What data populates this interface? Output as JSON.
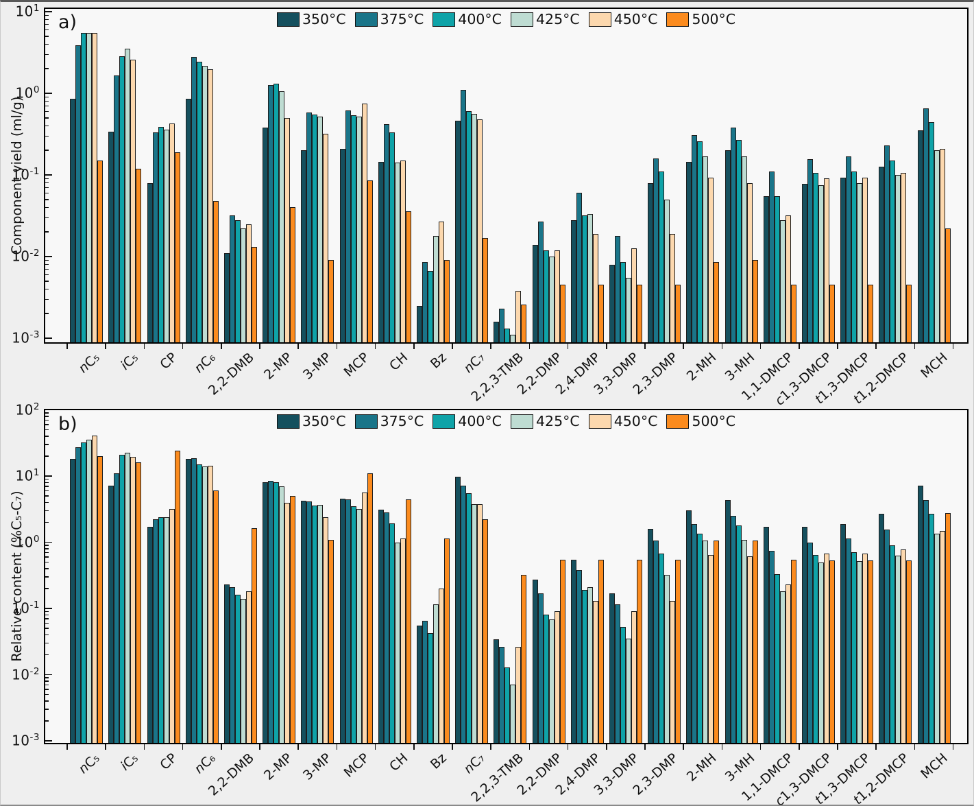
{
  "figure": {
    "panel_labels": [
      "a)",
      "b)"
    ]
  },
  "chart_data": [
    {
      "panel": "a",
      "type": "bar",
      "yscale": "log",
      "ylabel": "Component yield (ml/g)",
      "ylim": [
        0.001,
        10
      ],
      "y_tick_labels": [
        "10^1",
        "10^0",
        "10^-1",
        "10^-2",
        "10^-3"
      ],
      "legend_position": "top-center-inside",
      "grid": false,
      "categories": [
        "nC₅",
        "iC₅",
        "CP",
        "nC₆",
        "2,2-DMB",
        "2-MP",
        "3-MP",
        "MCP",
        "CH",
        "Bz",
        "nC₇",
        "2,2,3-TMB",
        "2,2-DMP",
        "2,4-DMP",
        "3,3-DMP",
        "2,3-DMP",
        "2-MH",
        "3-MH",
        "1,1-DMCP",
        "c1,3-DMCP",
        "t1,3-DMCP",
        "t1,2-DMCP",
        "MCH"
      ],
      "series": [
        {
          "name": "350°C",
          "color": "#15505e",
          "values": [
            0.85,
            0.34,
            0.08,
            0.85,
            0.011,
            0.38,
            0.2,
            0.21,
            0.145,
            0.0025,
            0.46,
            0.0016,
            0.014,
            0.028,
            0.008,
            0.08,
            0.145,
            0.2,
            0.055,
            0.078,
            0.092,
            0.125,
            0.35
          ]
        },
        {
          "name": "375°C",
          "color": "#1a7589",
          "values": [
            3.9,
            1.65,
            0.33,
            2.8,
            0.032,
            1.25,
            0.58,
            0.62,
            0.42,
            0.0085,
            1.1,
            0.0023,
            0.027,
            0.06,
            0.018,
            0.16,
            0.31,
            0.38,
            0.11,
            0.155,
            0.17,
            0.23,
            0.65
          ]
        },
        {
          "name": "400°C",
          "color": "#0fa3a8",
          "values": [
            5.5,
            2.85,
            0.39,
            2.45,
            0.028,
            1.3,
            0.55,
            0.54,
            0.33,
            0.0066,
            0.6,
            0.0013,
            0.012,
            0.032,
            0.0085,
            0.11,
            0.26,
            0.27,
            0.055,
            0.105,
            0.11,
            0.15,
            0.44
          ]
        },
        {
          "name": "425°C",
          "color": "#bedcd2",
          "values": [
            5.5,
            3.5,
            0.36,
            2.15,
            0.022,
            1.05,
            0.52,
            0.52,
            0.142,
            0.018,
            0.56,
            0.0011,
            0.01,
            0.033,
            0.0055,
            0.05,
            0.17,
            0.17,
            0.028,
            0.075,
            0.08,
            0.1,
            0.2
          ]
        },
        {
          "name": "450°C",
          "color": "#fcd8ae",
          "values": [
            5.5,
            2.6,
            0.43,
            1.95,
            0.025,
            0.5,
            0.32,
            0.75,
            0.15,
            0.027,
            0.48,
            0.0038,
            0.012,
            0.019,
            0.0125,
            0.019,
            0.092,
            0.08,
            0.032,
            0.09,
            0.092,
            0.105,
            0.21
          ]
        },
        {
          "name": "500°C",
          "color": "#fb8b1e",
          "values": [
            0.15,
            0.12,
            0.19,
            0.048,
            0.013,
            0.04,
            0.009,
            0.085,
            0.036,
            0.009,
            0.017,
            0.0026,
            0.0045,
            0.0045,
            0.0045,
            0.0045,
            0.0085,
            0.009,
            0.0045,
            0.0045,
            0.0045,
            0.0045,
            0.022
          ]
        }
      ]
    },
    {
      "panel": "b",
      "type": "bar",
      "yscale": "log",
      "ylabel": "Relative content (%C₅-C₇)",
      "ylim": [
        0.001,
        100
      ],
      "y_tick_labels": [
        "10^2",
        "10^1",
        "10^0",
        "10^-1",
        "10^-2",
        "10^-3"
      ],
      "legend_position": "top-center-inside",
      "grid": false,
      "categories": [
        "nC₅",
        "iC₅",
        "CP",
        "nC₆",
        "2,2-DMB",
        "2-MP",
        "3-MP",
        "MCP",
        "CH",
        "Bz",
        "nC₇",
        "2,2,3-TMB",
        "2,2-DMP",
        "2,4-DMP",
        "3,3-DMP",
        "2,3-DMP",
        "2-MH",
        "3-MH",
        "1,1-DMCP",
        "c1,3-DMCP",
        "t1,3-DMCP",
        "t1,2-DMCP",
        "MCH"
      ],
      "series": [
        {
          "name": "350°C",
          "color": "#15505e",
          "values": [
            18,
            7.1,
            1.7,
            18,
            0.23,
            8,
            4.2,
            4.5,
            3.1,
            0.055,
            9.8,
            0.034,
            0.27,
            0.55,
            0.17,
            1.6,
            3,
            4.3,
            1.7,
            1.7,
            1.9,
            2.7,
            7.2
          ]
        },
        {
          "name": "375°C",
          "color": "#1a7589",
          "values": [
            27,
            11,
            2.2,
            18.5,
            0.21,
            8.5,
            4.1,
            4.4,
            2.8,
            0.065,
            7.2,
            0.026,
            0.17,
            0.38,
            0.115,
            1.05,
            1.9,
            2.5,
            0.75,
            1,
            1.15,
            1.55,
            4.3
          ]
        },
        {
          "name": "400°C",
          "color": "#0fa3a8",
          "values": [
            32,
            21,
            2.4,
            15,
            0.16,
            8.1,
            3.6,
            3.5,
            1.95,
            0.042,
            5.5,
            0.013,
            0.08,
            0.19,
            0.053,
            0.68,
            1.35,
            1.8,
            0.33,
            0.65,
            0.7,
            0.9,
            2.7
          ]
        },
        {
          "name": "425°C",
          "color": "#bedcd2",
          "values": [
            35,
            22.5,
            2.4,
            14,
            0.14,
            7,
            3.7,
            3.2,
            1,
            0.115,
            3.8,
            0.007,
            0.068,
            0.21,
            0.035,
            0.32,
            1.05,
            1.1,
            0.18,
            0.5,
            0.52,
            0.63,
            1.35
          ]
        },
        {
          "name": "450°C",
          "color": "#fcd8ae",
          "values": [
            41,
            19.5,
            3.2,
            14.3,
            0.18,
            3.9,
            2.4,
            5.6,
            1.15,
            0.2,
            3.75,
            0.026,
            0.09,
            0.13,
            0.09,
            0.13,
            0.65,
            0.62,
            0.23,
            0.68,
            0.68,
            0.78,
            1.5
          ]
        },
        {
          "name": "500°C",
          "color": "#fb8b1e",
          "values": [
            20,
            16,
            24,
            6,
            1.65,
            5,
            1.1,
            11,
            4.4,
            1.15,
            2.2,
            0.32,
            0.55,
            0.55,
            0.55,
            0.55,
            1.05,
            1.05,
            0.55,
            0.53,
            0.53,
            0.53,
            2.75
          ]
        }
      ]
    }
  ]
}
